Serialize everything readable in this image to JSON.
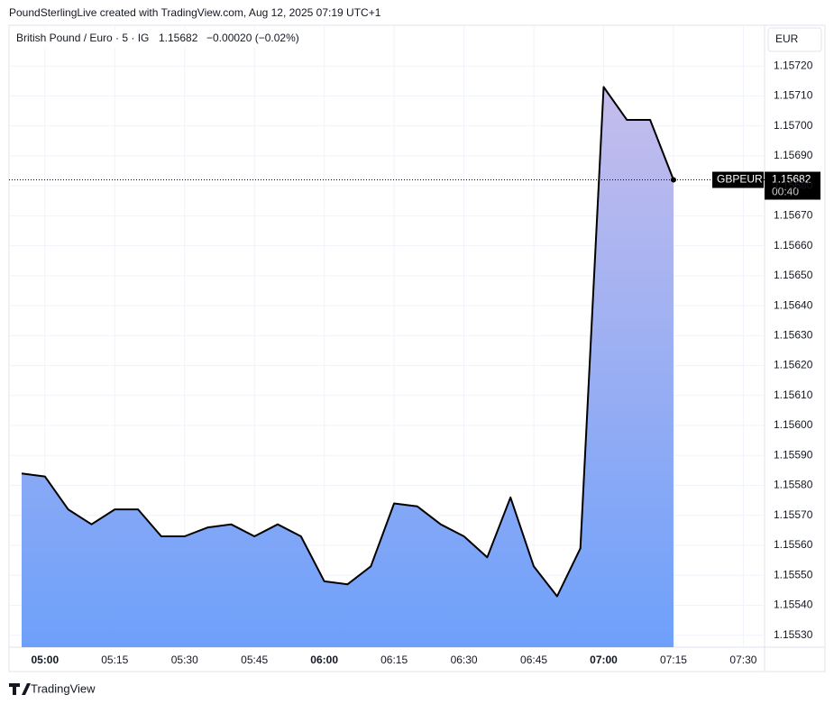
{
  "header": "PoundSterlingLive created with TradingView.com, Aug 12, 2025 07:19 UTC+1",
  "legend": {
    "symbol": "British Pound / Euro · 5 · IG",
    "price": "1.15682",
    "change": "−0.00020 (−0.02%)"
  },
  "currency": "EUR",
  "price_tag": {
    "ticker": "GBPEUR",
    "countdown": "00:40"
  },
  "footer": "TradingView",
  "chart_data": {
    "type": "area",
    "colors": {
      "line": "#000000",
      "fill_top": "#c5bdec",
      "fill_bottom": "#6ea0fa"
    },
    "categories": [
      null,
      "05:00",
      null,
      null,
      "05:15",
      null,
      null,
      "05:30",
      null,
      null,
      "05:45",
      null,
      null,
      "06:00",
      null,
      null,
      "06:15",
      null,
      null,
      "06:30",
      null,
      null,
      "06:45",
      null,
      null,
      "07:00",
      null,
      null,
      "07:15",
      null,
      null,
      "07:30"
    ],
    "values": [
      1.15584,
      1.15583,
      1.15572,
      1.15567,
      1.15572,
      1.15572,
      1.15563,
      1.15563,
      1.15566,
      1.15567,
      1.15563,
      1.15567,
      1.15563,
      1.15548,
      1.15547,
      1.15553,
      1.15574,
      1.15573,
      1.15567,
      1.15563,
      1.15556,
      1.15576,
      1.15553,
      1.15543,
      1.15559,
      1.15713,
      1.15702,
      1.15702,
      1.15682,
      null,
      null,
      null
    ],
    "last_price": 1.15682,
    "ylim": [
      1.15526,
      1.15733
    ],
    "yticks": [
      {
        "value": 1.1553,
        "label": "1.15530"
      },
      {
        "value": 1.1554,
        "label": "1.15540"
      },
      {
        "value": 1.1555,
        "label": "1.15550"
      },
      {
        "value": 1.1556,
        "label": "1.15560"
      },
      {
        "value": 1.1557,
        "label": "1.15570"
      },
      {
        "value": 1.1558,
        "label": "1.15580"
      },
      {
        "value": 1.1559,
        "label": "1.15590"
      },
      {
        "value": 1.156,
        "label": "1.15600"
      },
      {
        "value": 1.1561,
        "label": "1.15610"
      },
      {
        "value": 1.1562,
        "label": "1.15620"
      },
      {
        "value": 1.1563,
        "label": "1.15630"
      },
      {
        "value": 1.1564,
        "label": "1.15640"
      },
      {
        "value": 1.1565,
        "label": "1.15650"
      },
      {
        "value": 1.1566,
        "label": "1.15660"
      },
      {
        "value": 1.1567,
        "label": "1.15670"
      },
      {
        "value": 1.1568,
        "label": "1.15680"
      },
      {
        "value": 1.1569,
        "label": "1.15690"
      },
      {
        "value": 1.157,
        "label": "1.15700"
      },
      {
        "value": 1.1571,
        "label": "1.15710"
      },
      {
        "value": 1.1572,
        "label": "1.15720"
      }
    ],
    "grid": true
  }
}
